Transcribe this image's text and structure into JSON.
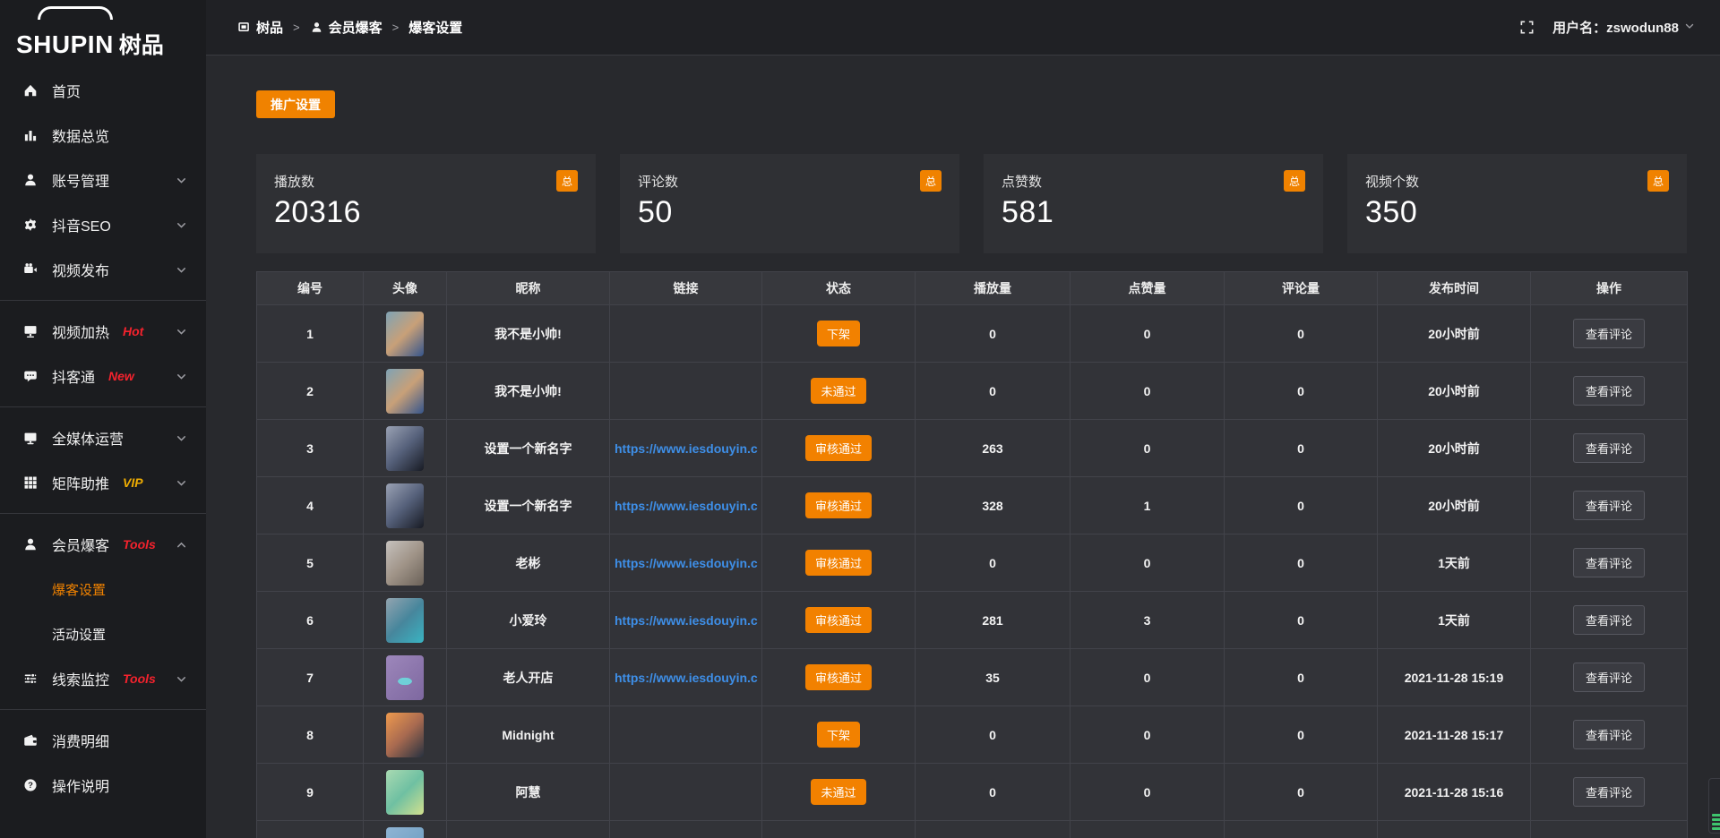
{
  "app": {
    "logo_text": "SHUPIN",
    "logo_text_cn": "树品"
  },
  "topbar": {
    "breadcrumb": [
      {
        "label": "树品",
        "icon": "app-icon"
      },
      {
        "label": "会员爆客",
        "icon": "user-icon"
      },
      {
        "label": "爆客设置",
        "icon": ""
      }
    ],
    "separator": ">",
    "username_label": "用户名：zswodun88"
  },
  "toolbar": {
    "promo_button": "推广设置"
  },
  "stats": {
    "badge": "总",
    "cards": [
      {
        "label": "播放数",
        "value": "20316"
      },
      {
        "label": "评论数",
        "value": "50"
      },
      {
        "label": "点赞数",
        "value": "581"
      },
      {
        "label": "视频个数",
        "value": "350"
      }
    ]
  },
  "sidebar": {
    "items": [
      {
        "label": "首页",
        "icon": "home-icon"
      },
      {
        "label": "数据总览",
        "icon": "bar-chart-icon"
      },
      {
        "label": "账号管理",
        "icon": "user-icon",
        "chevron": "down"
      },
      {
        "label": "抖音SEO",
        "icon": "gear-icon",
        "chevron": "down"
      },
      {
        "label": "视频发布",
        "icon": "video-camera-icon",
        "chevron": "down",
        "divider_after": true
      },
      {
        "label": "视频加热",
        "icon": "monitor-icon",
        "tag": "Hot",
        "tag_color": "#f5222d",
        "chevron": "down"
      },
      {
        "label": "抖客通",
        "icon": "chat-icon",
        "tag": "New",
        "tag_color": "#f5222d",
        "chevron": "down",
        "divider_after": true
      },
      {
        "label": "全媒体运营",
        "icon": "display-icon",
        "chevron": "down"
      },
      {
        "label": "矩阵助推",
        "icon": "grid-icon",
        "tag": "VIP",
        "tag_color": "#efad02",
        "chevron": "down",
        "divider_after": true
      },
      {
        "label": "会员爆客",
        "icon": "member-icon",
        "tag": "Tools",
        "tag_color": "#f5222d",
        "chevron": "up",
        "children": [
          {
            "label": "爆客设置",
            "active": true
          },
          {
            "label": "活动设置",
            "active": false
          }
        ]
      },
      {
        "label": "线索监控",
        "icon": "sliders-icon",
        "tag": "Tools",
        "tag_color": "#f5222d",
        "chevron": "down",
        "divider_after": true
      },
      {
        "label": "消费明细",
        "icon": "wallet-icon"
      },
      {
        "label": "操作说明",
        "icon": "question-icon"
      }
    ]
  },
  "table": {
    "headers": [
      "编号",
      "头像",
      "昵称",
      "链接",
      "状态",
      "播放量",
      "点赞量",
      "评论量",
      "发布时间",
      "操作"
    ],
    "action_label": "查看评论",
    "rows": [
      {
        "id": "1",
        "nickname": "我不是小帅!",
        "link": "",
        "status": "下架",
        "plays": "0",
        "likes": "0",
        "comments": "0",
        "time": "20小时前",
        "avatar_colors": [
          "#7fa3b5",
          "#c8a078",
          "#35558c"
        ]
      },
      {
        "id": "2",
        "nickname": "我不是小帅!",
        "link": "",
        "status": "未通过",
        "plays": "0",
        "likes": "0",
        "comments": "0",
        "time": "20小时前",
        "avatar_colors": [
          "#7fa3b5",
          "#c8a078",
          "#35558c"
        ]
      },
      {
        "id": "3",
        "nickname": "设置一个新名字",
        "link": "https://www.iesdouyin.c",
        "status": "审核通过",
        "plays": "263",
        "likes": "0",
        "comments": "0",
        "time": "20小时前",
        "avatar_colors": [
          "#9aa2b4",
          "#55607a",
          "#181b24"
        ]
      },
      {
        "id": "4",
        "nickname": "设置一个新名字",
        "link": "https://www.iesdouyin.c",
        "status": "审核通过",
        "plays": "328",
        "likes": "1",
        "comments": "0",
        "time": "20小时前",
        "avatar_colors": [
          "#9aa2b4",
          "#55607a",
          "#181b24"
        ]
      },
      {
        "id": "5",
        "nickname": "老彬",
        "link": "https://www.iesdouyin.c",
        "status": "审核通过",
        "plays": "0",
        "likes": "0",
        "comments": "0",
        "time": "1天前",
        "avatar_colors": [
          "#c6c2be",
          "#a09488",
          "#6a6158"
        ]
      },
      {
        "id": "6",
        "nickname": "小爱玲",
        "link": "https://www.iesdouyin.c",
        "status": "审核通过",
        "plays": "281",
        "likes": "3",
        "comments": "0",
        "time": "1天前",
        "avatar_colors": [
          "#93a4b0",
          "#47869c",
          "#3ab4c2"
        ]
      },
      {
        "id": "7",
        "nickname": "老人开店",
        "link": "https://www.iesdouyin.c",
        "status": "审核通过",
        "plays": "35",
        "likes": "0",
        "comments": "0",
        "time": "2021-11-28 15:19",
        "avatar_colors": [
          "#9d87bb",
          "#8d77ad",
          "#7e68a0"
        ],
        "avatar_accent": "#6fd0d8"
      },
      {
        "id": "8",
        "nickname": "Midnight",
        "link": "",
        "status": "下架",
        "plays": "0",
        "likes": "0",
        "comments": "0",
        "time": "2021-11-28 15:17",
        "avatar_colors": [
          "#ef9a4e",
          "#a86a50",
          "#273140"
        ]
      },
      {
        "id": "9",
        "nickname": "阿慧",
        "link": "",
        "status": "未通过",
        "plays": "0",
        "likes": "0",
        "comments": "0",
        "time": "2021-11-28 15:16",
        "avatar_colors": [
          "#a9dab2",
          "#6fc0a2",
          "#d2e08e"
        ]
      },
      {
        "id": "",
        "nickname": "",
        "link": "",
        "status": "",
        "plays": "",
        "likes": "",
        "comments": "",
        "time": "",
        "avatar_colors": [
          "#8fb4d4",
          "#7aa6c8",
          "#6f9cc4"
        ]
      }
    ]
  },
  "colors": {
    "accent": "#f28100",
    "link_blue": "#3e8fe8",
    "tag_red": "#f5222d",
    "tag_vip": "#efad02"
  }
}
